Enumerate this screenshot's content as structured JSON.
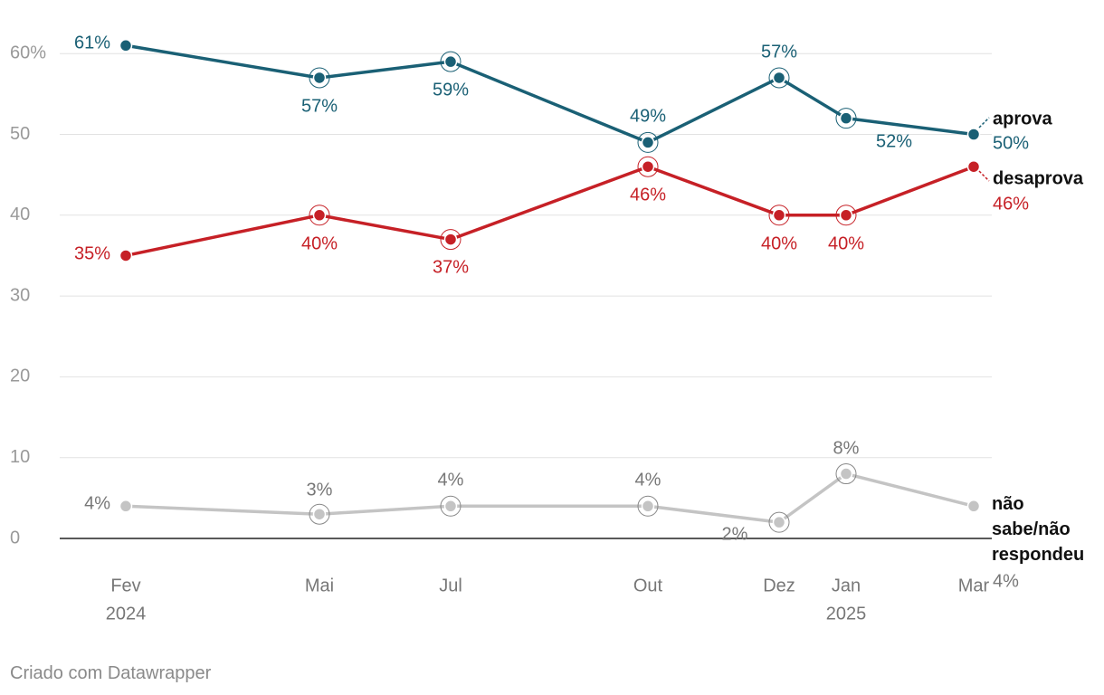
{
  "chart_data": {
    "type": "line",
    "categories": [
      "Fev\n2024",
      "Mai",
      "Jul",
      "Out",
      "Dez",
      "Jan\n2025",
      "Mar"
    ],
    "series": [
      {
        "name": "aprova",
        "color": "#1a6075",
        "values": [
          61,
          57,
          59,
          49,
          57,
          52,
          50
        ],
        "labels": [
          "61%",
          "57%",
          "59%",
          "49%",
          "57%",
          "52%",
          "50%"
        ]
      },
      {
        "name": "desaprova",
        "color": "#c62026",
        "values": [
          35,
          40,
          37,
          46,
          40,
          40,
          46
        ],
        "labels": [
          "35%",
          "40%",
          "37%",
          "46%",
          "40%",
          "40%",
          "46%"
        ]
      },
      {
        "name": "não sabe/não respondeu",
        "color": "#c4c4c4",
        "values": [
          4,
          3,
          4,
          4,
          2,
          8,
          4
        ],
        "labels": [
          "4%",
          "3%",
          "4%",
          "4%",
          "2%",
          "8%",
          "4%"
        ]
      }
    ],
    "yticks": [
      "0",
      "10",
      "20",
      "30",
      "40",
      "50",
      "60%"
    ],
    "ylim": [
      0,
      60
    ],
    "grid": true,
    "title": "",
    "xlabel": "",
    "ylabel": ""
  },
  "footer": {
    "credit": "Criado com Datawrapper"
  }
}
